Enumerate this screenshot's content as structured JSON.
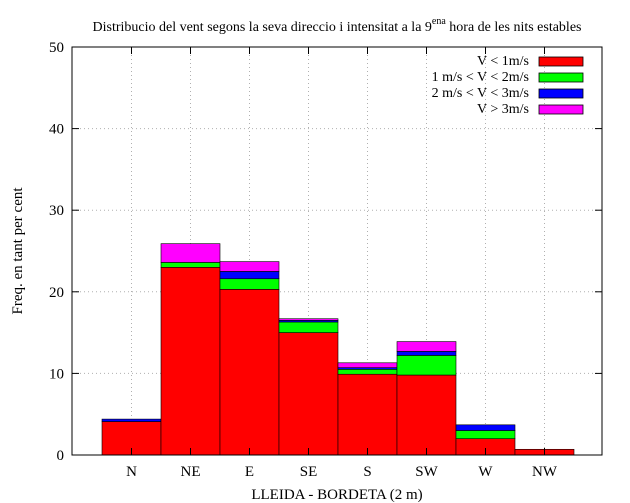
{
  "chart_data": {
    "type": "bar",
    "stacked": true,
    "title": "Distribucio del vent segons la seva direccio i intensitat a la 9",
    "title_superscript": "ena",
    "title_tail": " hora de les nits estables",
    "xlabel": "LLEIDA - BORDETA (2 m)",
    "ylabel": "Freq. en tant per cent",
    "categories": [
      "N",
      "NE",
      "E",
      "SE",
      "S",
      "SW",
      "W",
      "NW"
    ],
    "ylim": [
      0,
      50
    ],
    "yticks": [
      0,
      10,
      20,
      30,
      40,
      50
    ],
    "grid": true,
    "legend_position": "top-right",
    "series": [
      {
        "name": "V < 1m/s",
        "color": "#ff0000",
        "values": [
          4.1,
          23.0,
          20.3,
          15.0,
          9.9,
          9.8,
          2.0,
          0.7
        ]
      },
      {
        "name": "1 m/s < V < 2m/s",
        "color": "#00ff00",
        "values": [
          0.0,
          0.6,
          1.3,
          1.3,
          0.6,
          2.4,
          1.0,
          0.0
        ]
      },
      {
        "name": "2 m/s < V < 3m/s",
        "color": "#0000ff",
        "values": [
          0.3,
          0.0,
          0.9,
          0.2,
          0.2,
          0.5,
          0.7,
          0.0
        ]
      },
      {
        "name": "V > 3m/s",
        "color": "#ff00ff",
        "values": [
          0.0,
          2.3,
          1.2,
          0.2,
          0.6,
          1.2,
          0.0,
          0.0
        ]
      }
    ]
  }
}
